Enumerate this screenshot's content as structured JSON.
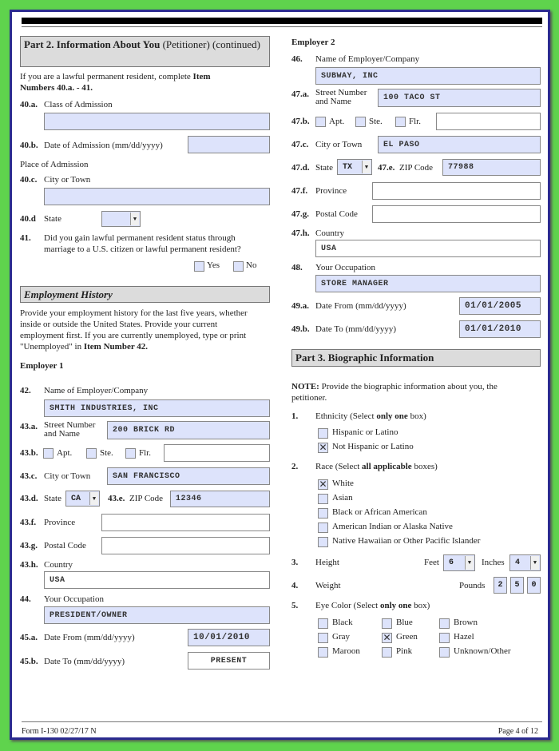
{
  "left": {
    "part2_bold": "Part 2.  Information About You",
    "part2_rest": " (Petitioner) (continued)",
    "intro1": "If you are a lawful permanent resident, complete ",
    "intro1b": "Item",
    "intro2b": "Numbers 40.a. - 41.",
    "q40a_num": "40.a.",
    "q40a": "Class of Admission",
    "v40a": "",
    "q40b_num": "40.b.",
    "q40b": "Date of Admission (mm/dd/yyyy)",
    "v40b": "",
    "place": "Place of Admission",
    "q40c_num": "40.c.",
    "q40c": "City or Town",
    "v40c": "",
    "q40d_num": "40.d",
    "q40d": "State",
    "v40d": "",
    "q41_num": "41.",
    "q41_l1": "Did you gain lawful permanent resident status through",
    "q41_l2": "marriage to a U.S. citizen or lawful permanent resident?",
    "yes": "Yes",
    "no": "No",
    "emp_header": "Employment History",
    "emp_p1": "Provide your employment history for the last five years, whether",
    "emp_p2": "inside or outside the United States.  Provide your current",
    "emp_p3": "employment first.  If you are currently unemployed, type or print",
    "emp_p4": "\"Unemployed\" in ",
    "emp_p4b": "Item Number 42.",
    "employer1": "Employer 1",
    "q42_num": "42.",
    "q42": "Name of Employer/Company",
    "v42": "SMITH INDUSTRIES, INC",
    "q43a_num": "43.a.",
    "q43a_1": "Street Number",
    "q43a_2": "and Name",
    "v43a": "200 BRICK RD",
    "q43b_num": "43.b.",
    "apt": "Apt.",
    "ste": "Ste.",
    "flr": "Flr.",
    "v43b": "",
    "q43c_num": "43.c.",
    "q43c": "City or Town",
    "v43c": "SAN FRANCISCO",
    "q43d_num": "43.d.",
    "q43d": "State",
    "v43d": "CA",
    "q43e_num": "43.e.",
    "q43e": "ZIP Code",
    "v43e": "12346",
    "q43f_num": "43.f.",
    "q43f": "Province",
    "v43f": "",
    "q43g_num": "43.g.",
    "q43g": "Postal Code",
    "v43g": "",
    "q43h_num": "43.h.",
    "q43h": "Country",
    "v43h": "USA",
    "q44_num": "44.",
    "q44": "Your Occupation",
    "v44": "PRESIDENT/OWNER",
    "q45a_num": "45.a.",
    "q45a": "Date From (mm/dd/yyyy)",
    "v45a": "10/01/2010",
    "q45b_num": "45.b.",
    "q45b": "Date To (mm/dd/yyyy)",
    "v45b": "PRESENT"
  },
  "right": {
    "employer2": "Employer 2",
    "q46_num": "46.",
    "q46": "Name of Employer/Company",
    "v46": "SUBWAY, INC",
    "q47a_num": "47.a.",
    "q47a_1": "Street Number",
    "q47a_2": "and Name",
    "v47a": "100 TACO ST",
    "q47b_num": "47.b.",
    "apt": "Apt.",
    "ste": "Ste.",
    "flr": "Flr.",
    "v47b": "",
    "q47c_num": "47.c.",
    "q47c": "City or Town",
    "v47c": "EL PASO",
    "q47d_num": "47.d.",
    "q47d": "State",
    "v47d": "TX",
    "q47e_num": "47.e.",
    "q47e": "ZIP Code",
    "v47e": "77988",
    "q47f_num": "47.f.",
    "q47f": "Province",
    "v47f": "",
    "q47g_num": "47.g.",
    "q47g": "Postal Code",
    "v47g": "",
    "q47h_num": "47.h.",
    "q47h": "Country",
    "v47h": "USA",
    "q48_num": "48.",
    "q48": "Your Occupation",
    "v48": "STORE MANAGER",
    "q49a_num": "49.a.",
    "q49a": "Date From (mm/dd/yyyy)",
    "v49a": "01/01/2005",
    "q49b_num": "49.b.",
    "q49b": "Date To (mm/dd/yyyy)",
    "v49b": "01/01/2010",
    "part3": "Part 3.  Biographic Information",
    "note_b": "NOTE:",
    "note1": "  Provide the biographic information about you, the",
    "note2": "petitioner.",
    "q1_num": "1.",
    "q1a": "Ethnicity (Select ",
    "q1b": "only one",
    "q1c": " box)",
    "ethnicity": [
      {
        "label": "Hispanic or Latino",
        "mark": ""
      },
      {
        "label": "Not Hispanic or Latino",
        "mark": "✕"
      }
    ],
    "q2_num": "2.",
    "q2a": "Race (Select ",
    "q2b": "all applicable",
    "q2c": " boxes)",
    "race": [
      {
        "label": "White",
        "mark": "✕"
      },
      {
        "label": "Asian",
        "mark": ""
      },
      {
        "label": "Black or African American",
        "mark": ""
      },
      {
        "label": "American Indian or Alaska Native",
        "mark": ""
      },
      {
        "label": "Native Hawaiian or Other Pacific Islander",
        "mark": ""
      }
    ],
    "q3_num": "3.",
    "q3": "Height",
    "feet": "Feet",
    "feet_v": "6",
    "inches": "Inches",
    "inches_v": "4",
    "q4_num": "4.",
    "q4": "Weight",
    "pounds": "Pounds",
    "pounds_digits": [
      "2",
      "5",
      "0"
    ],
    "q5_num": "5.",
    "q5a": "Eye Color (Select ",
    "q5b": "only one",
    "q5c": " box)",
    "eyes": [
      {
        "label": "Black",
        "mark": ""
      },
      {
        "label": "Blue",
        "mark": ""
      },
      {
        "label": "Brown",
        "mark": ""
      },
      {
        "label": "Gray",
        "mark": ""
      },
      {
        "label": "Green",
        "mark": "✕"
      },
      {
        "label": "Hazel",
        "mark": ""
      },
      {
        "label": "Maroon",
        "mark": ""
      },
      {
        "label": "Pink",
        "mark": ""
      },
      {
        "label": "Unknown/Other",
        "mark": ""
      }
    ]
  },
  "footer": {
    "form": "Form I-130   02/27/17   N",
    "page": "Page 4 of 12"
  }
}
